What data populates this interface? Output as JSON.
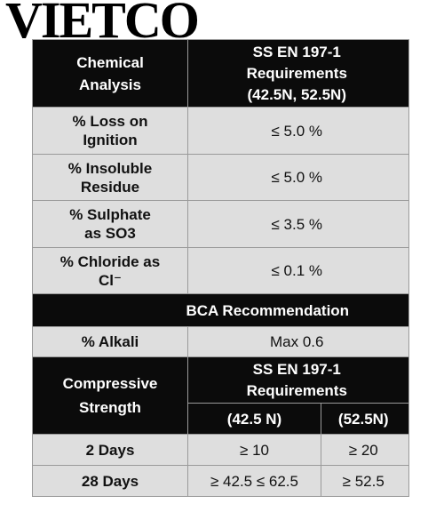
{
  "watermark": "VIETCO",
  "header": {
    "col1": "Chemical Analysis",
    "col2_line1": "SS EN 197-1",
    "col2_line2": "Requirements",
    "col2_line3": "(42.5N, 52.5N)"
  },
  "chemical_rows": [
    {
      "label_1": "% Loss on",
      "label_2": "Ignition",
      "value": "≤ 5.0 %"
    },
    {
      "label_1": "% Insoluble",
      "label_2": "Residue",
      "value": "≤ 5.0 %"
    },
    {
      "label_1": "% Sulphate",
      "label_2": "as SO3",
      "value": "≤ 3.5 %"
    },
    {
      "label_1": "% Chloride as",
      "label_2": "Cl⁻",
      "value": "≤ 0.1 %"
    }
  ],
  "bca": {
    "heading": "BCA Recommendation",
    "label": "% Alkali",
    "value": "Max 0.6"
  },
  "strength": {
    "label_1": "Compressive",
    "label_2": "Strength",
    "req_line1": "SS EN 197-1",
    "req_line2": "Requirements",
    "col_a": "(42.5 N)",
    "col_b": "(52.5N)",
    "rows": [
      {
        "label": "2 Days",
        "a": "≥ 10",
        "b": "≥ 20"
      },
      {
        "label": "28 Days",
        "a": "≥ 42.5 ≤ 62.5",
        "b": "≥ 52.5"
      }
    ]
  }
}
